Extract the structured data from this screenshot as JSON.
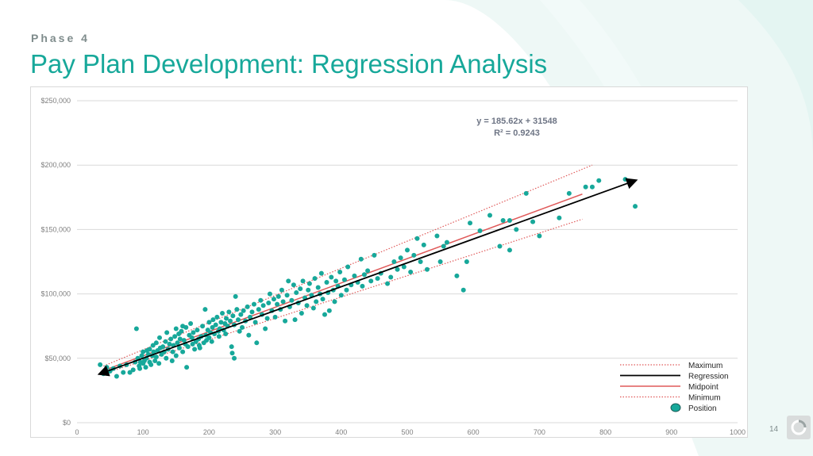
{
  "header": {
    "phase": "Phase 4",
    "title": "Pay Plan Development: Regression Analysis"
  },
  "footer": {
    "page_number": "14"
  },
  "colors": {
    "title": "#17a89a",
    "points": "#17a89a",
    "regression": "#000000",
    "midpoint": "#e05a5a",
    "range": "#e05a5a",
    "deco": "#e8f6f4"
  },
  "chart_data": {
    "type": "scatter",
    "title": "",
    "xlabel": "",
    "ylabel": "",
    "xlim": [
      0,
      1000
    ],
    "ylim": [
      0,
      250000
    ],
    "x_ticks": [
      "0",
      "100",
      "200",
      "300",
      "400",
      "500",
      "600",
      "700",
      "800",
      "900",
      "1000"
    ],
    "y_ticks": [
      "$0",
      "$50,000",
      "$100,000",
      "$150,000",
      "$200,000",
      "$250,000"
    ],
    "grid": "horizontal",
    "legend_position": "bottom-right",
    "equation": "y = 185.62x + 31548",
    "r_squared": "R² = 0.9243",
    "series": [
      {
        "name": "Position",
        "kind": "points",
        "points": [
          [
            35,
            45000
          ],
          [
            40,
            38000
          ],
          [
            45,
            43000
          ],
          [
            50,
            40000
          ],
          [
            55,
            42000
          ],
          [
            60,
            36000
          ],
          [
            65,
            44000
          ],
          [
            70,
            39000
          ],
          [
            75,
            45000
          ],
          [
            80,
            39000
          ],
          [
            85,
            41000
          ],
          [
            88,
            47000
          ],
          [
            90,
            73000
          ],
          [
            92,
            50000
          ],
          [
            94,
            44000
          ],
          [
            95,
            42000
          ],
          [
            96,
            47000
          ],
          [
            98,
            52000
          ],
          [
            100,
            55000
          ],
          [
            100,
            46000
          ],
          [
            102,
            48000
          ],
          [
            104,
            43000
          ],
          [
            105,
            50000
          ],
          [
            106,
            56000
          ],
          [
            108,
            53000
          ],
          [
            110,
            47000
          ],
          [
            110,
            57000
          ],
          [
            112,
            45000
          ],
          [
            114,
            52000
          ],
          [
            115,
            60000
          ],
          [
            116,
            55000
          ],
          [
            118,
            48000
          ],
          [
            120,
            62000
          ],
          [
            120,
            51000
          ],
          [
            122,
            56000
          ],
          [
            124,
            46000
          ],
          [
            125,
            66000
          ],
          [
            126,
            58000
          ],
          [
            128,
            53000
          ],
          [
            130,
            59000
          ],
          [
            132,
            55000
          ],
          [
            134,
            63000
          ],
          [
            135,
            50000
          ],
          [
            136,
            70000
          ],
          [
            138,
            57000
          ],
          [
            140,
            61000
          ],
          [
            142,
            65000
          ],
          [
            144,
            48000
          ],
          [
            145,
            55000
          ],
          [
            146,
            60000
          ],
          [
            148,
            67000
          ],
          [
            150,
            73000
          ],
          [
            150,
            52000
          ],
          [
            152,
            62000
          ],
          [
            154,
            69000
          ],
          [
            155,
            58000
          ],
          [
            156,
            65000
          ],
          [
            158,
            71000
          ],
          [
            160,
            75000
          ],
          [
            160,
            55000
          ],
          [
            162,
            64000
          ],
          [
            164,
            61000
          ],
          [
            165,
            74000
          ],
          [
            166,
            43000
          ],
          [
            168,
            59000
          ],
          [
            170,
            68000
          ],
          [
            172,
            77000
          ],
          [
            174,
            66000
          ],
          [
            175,
            61000
          ],
          [
            176,
            70000
          ],
          [
            178,
            57000
          ],
          [
            180,
            63000
          ],
          [
            182,
            72000
          ],
          [
            184,
            65000
          ],
          [
            185,
            60000
          ],
          [
            186,
            58000
          ],
          [
            188,
            67000
          ],
          [
            190,
            75000
          ],
          [
            192,
            62000
          ],
          [
            194,
            88000
          ],
          [
            195,
            68000
          ],
          [
            196,
            64000
          ],
          [
            198,
            72000
          ],
          [
            200,
            78000
          ],
          [
            200,
            66000
          ],
          [
            202,
            70000
          ],
          [
            204,
            63000
          ],
          [
            205,
            74000
          ],
          [
            206,
            80000
          ],
          [
            208,
            69000
          ],
          [
            210,
            76000
          ],
          [
            212,
            82000
          ],
          [
            214,
            71000
          ],
          [
            215,
            67000
          ],
          [
            216,
            73000
          ],
          [
            218,
            78000
          ],
          [
            220,
            85000
          ],
          [
            222,
            72000
          ],
          [
            224,
            77000
          ],
          [
            225,
            69000
          ],
          [
            226,
            81000
          ],
          [
            228,
            75000
          ],
          [
            230,
            86000
          ],
          [
            232,
            79000
          ],
          [
            234,
            59000
          ],
          [
            235,
            54000
          ],
          [
            236,
            83000
          ],
          [
            238,
            50000
          ],
          [
            238,
            76000
          ],
          [
            240,
            98000
          ],
          [
            242,
            88000
          ],
          [
            244,
            80000
          ],
          [
            246,
            71000
          ],
          [
            248,
            84000
          ],
          [
            250,
            74000
          ],
          [
            252,
            87000
          ],
          [
            255,
            79000
          ],
          [
            258,
            90000
          ],
          [
            260,
            68000
          ],
          [
            262,
            82000
          ],
          [
            265,
            86000
          ],
          [
            268,
            92000
          ],
          [
            270,
            78000
          ],
          [
            272,
            62000
          ],
          [
            275,
            88000
          ],
          [
            278,
            95000
          ],
          [
            280,
            84000
          ],
          [
            282,
            91000
          ],
          [
            285,
            73000
          ],
          [
            288,
            81000
          ],
          [
            290,
            93000
          ],
          [
            292,
            100000
          ],
          [
            295,
            87000
          ],
          [
            298,
            96000
          ],
          [
            300,
            82000
          ],
          [
            303,
            92000
          ],
          [
            305,
            98000
          ],
          [
            308,
            88000
          ],
          [
            310,
            103000
          ],
          [
            312,
            94000
          ],
          [
            315,
            79000
          ],
          [
            318,
            99000
          ],
          [
            320,
            110000
          ],
          [
            322,
            90000
          ],
          [
            325,
            95000
          ],
          [
            328,
            107000
          ],
          [
            330,
            80000
          ],
          [
            332,
            101000
          ],
          [
            335,
            93000
          ],
          [
            338,
            104000
          ],
          [
            340,
            85000
          ],
          [
            342,
            110000
          ],
          [
            345,
            97000
          ],
          [
            348,
            91000
          ],
          [
            350,
            103000
          ],
          [
            352,
            108000
          ],
          [
            355,
            99000
          ],
          [
            358,
            89000
          ],
          [
            360,
            112000
          ],
          [
            362,
            94000
          ],
          [
            365,
            105000
          ],
          [
            368,
            100000
          ],
          [
            370,
            116000
          ],
          [
            372,
            96000
          ],
          [
            375,
            84000
          ],
          [
            378,
            109000
          ],
          [
            380,
            101000
          ],
          [
            382,
            87000
          ],
          [
            385,
            113000
          ],
          [
            388,
            103000
          ],
          [
            390,
            94000
          ],
          [
            392,
            110000
          ],
          [
            395,
            106000
          ],
          [
            398,
            117000
          ],
          [
            400,
            99000
          ],
          [
            405,
            111000
          ],
          [
            408,
            103000
          ],
          [
            410,
            121000
          ],
          [
            415,
            107000
          ],
          [
            420,
            114000
          ],
          [
            425,
            109000
          ],
          [
            430,
            127000
          ],
          [
            432,
            106000
          ],
          [
            435,
            115000
          ],
          [
            440,
            118000
          ],
          [
            445,
            110000
          ],
          [
            450,
            130000
          ],
          [
            455,
            112000
          ],
          [
            460,
            116000
          ],
          [
            470,
            108000
          ],
          [
            475,
            113000
          ],
          [
            480,
            125000
          ],
          [
            485,
            119000
          ],
          [
            490,
            128000
          ],
          [
            495,
            121000
          ],
          [
            500,
            134000
          ],
          [
            505,
            117000
          ],
          [
            510,
            130000
          ],
          [
            515,
            143000
          ],
          [
            520,
            125000
          ],
          [
            525,
            138000
          ],
          [
            530,
            119000
          ],
          [
            545,
            145000
          ],
          [
            550,
            125000
          ],
          [
            555,
            137000
          ],
          [
            560,
            140000
          ],
          [
            575,
            114000
          ],
          [
            585,
            103000
          ],
          [
            590,
            125000
          ],
          [
            595,
            155000
          ],
          [
            610,
            149000
          ],
          [
            625,
            161000
          ],
          [
            640,
            137000
          ],
          [
            645,
            157000
          ],
          [
            655,
            157000
          ],
          [
            655,
            134000
          ],
          [
            665,
            150000
          ],
          [
            680,
            178000
          ],
          [
            690,
            156000
          ],
          [
            700,
            145000
          ],
          [
            730,
            159000
          ],
          [
            745,
            178000
          ],
          [
            770,
            183000
          ],
          [
            780,
            183000
          ],
          [
            790,
            188000
          ],
          [
            830,
            189000
          ],
          [
            845,
            168000
          ]
        ]
      },
      {
        "name": "Regression",
        "kind": "line",
        "points": [
          [
            35,
            38000
          ],
          [
            845,
            188000
          ]
        ]
      },
      {
        "name": "Midpoint",
        "kind": "line",
        "points": [
          [
            40,
            40500
          ],
          [
            765,
            177500
          ]
        ]
      },
      {
        "name": "Maximum",
        "kind": "line",
        "points": [
          [
            40,
            44000
          ],
          [
            780,
            200000
          ]
        ]
      },
      {
        "name": "Minimum",
        "kind": "line",
        "points": [
          [
            40,
            38000
          ],
          [
            765,
            158000
          ]
        ]
      }
    ],
    "legend": [
      "Maximum",
      "Regression",
      "Midpoint",
      "Minimum",
      "Position"
    ]
  }
}
